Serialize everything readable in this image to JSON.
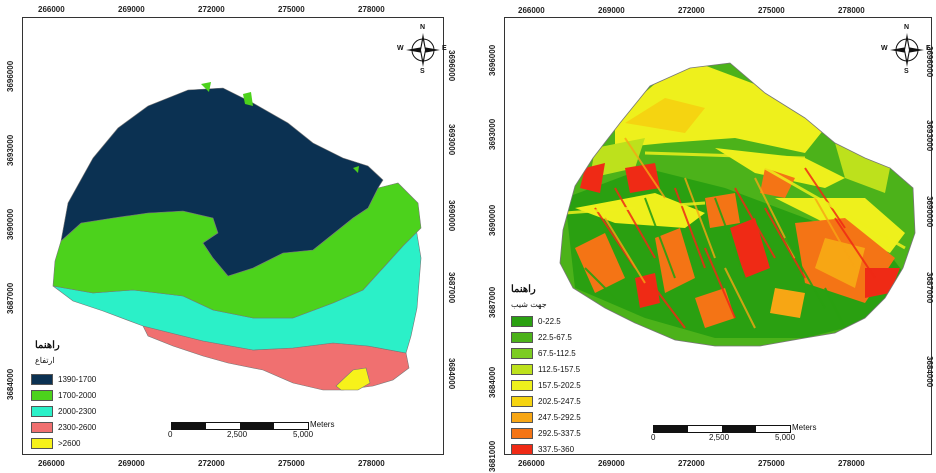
{
  "maps": [
    {
      "id": "elevation",
      "top_ticks": [
        "266000",
        "269000",
        "272000",
        "275000",
        "278000"
      ],
      "bottom_ticks": [
        "266000",
        "269000",
        "272000",
        "275000",
        "278000"
      ],
      "left_ticks": [
        "3696000",
        "3693000",
        "3690000",
        "3687000",
        "3684000"
      ],
      "right_ticks": [
        "3696000",
        "3693000",
        "3690000",
        "3687000",
        "3684000"
      ],
      "legend_title": "راهنما",
      "legend_subtitle": "ارتفاع",
      "legend_items": [
        {
          "label": "1390-1700",
          "color": "#0b3152"
        },
        {
          "label": "1700-2000",
          "color": "#4cd21c"
        },
        {
          "label": "2000-2300",
          "color": "#2bf0c8"
        },
        {
          "label": "2300-2600",
          "color": "#f07070"
        },
        {
          "label": ">2600",
          "color": "#f7f21a"
        }
      ],
      "scale": {
        "labels": [
          "0",
          "2,500",
          "5,000"
        ],
        "unit": "Meters"
      },
      "compass": {
        "n": "N",
        "s": "S",
        "e": "E",
        "w": "W"
      }
    },
    {
      "id": "aspect",
      "top_ticks": [
        "266000",
        "269000",
        "272000",
        "275000",
        "278000"
      ],
      "bottom_ticks": [
        "266000",
        "269000",
        "272000",
        "275000",
        "278000"
      ],
      "left_ticks": [
        "3696000",
        "3693000",
        "3690000",
        "3687000",
        "3684000",
        "3681000"
      ],
      "right_ticks": [
        "3696000",
        "3693000",
        "3690000",
        "3687000",
        "3684000"
      ],
      "legend_title": "راهنما",
      "legend_subtitle": "جهت شیب",
      "legend_items": [
        {
          "label": "0-22.5",
          "color": "#2aa011"
        },
        {
          "label": "22.5-67.5",
          "color": "#4cb21a"
        },
        {
          "label": "67.5-112.5",
          "color": "#7ccc22"
        },
        {
          "label": "112.5-157.5",
          "color": "#bde11c"
        },
        {
          "label": "157.5-202.5",
          "color": "#eef01c"
        },
        {
          "label": "202.5-247.5",
          "color": "#f5d411"
        },
        {
          "label": "247.5-292.5",
          "color": "#f7a614"
        },
        {
          "label": "292.5-337.5",
          "color": "#f47415"
        },
        {
          "label": "337.5-360",
          "color": "#ef2a15"
        }
      ],
      "scale": {
        "labels": [
          "0",
          "2,500",
          "5,000"
        ],
        "unit": "Meters"
      },
      "compass": {
        "n": "N",
        "s": "S",
        "e": "E",
        "w": "W"
      }
    }
  ]
}
